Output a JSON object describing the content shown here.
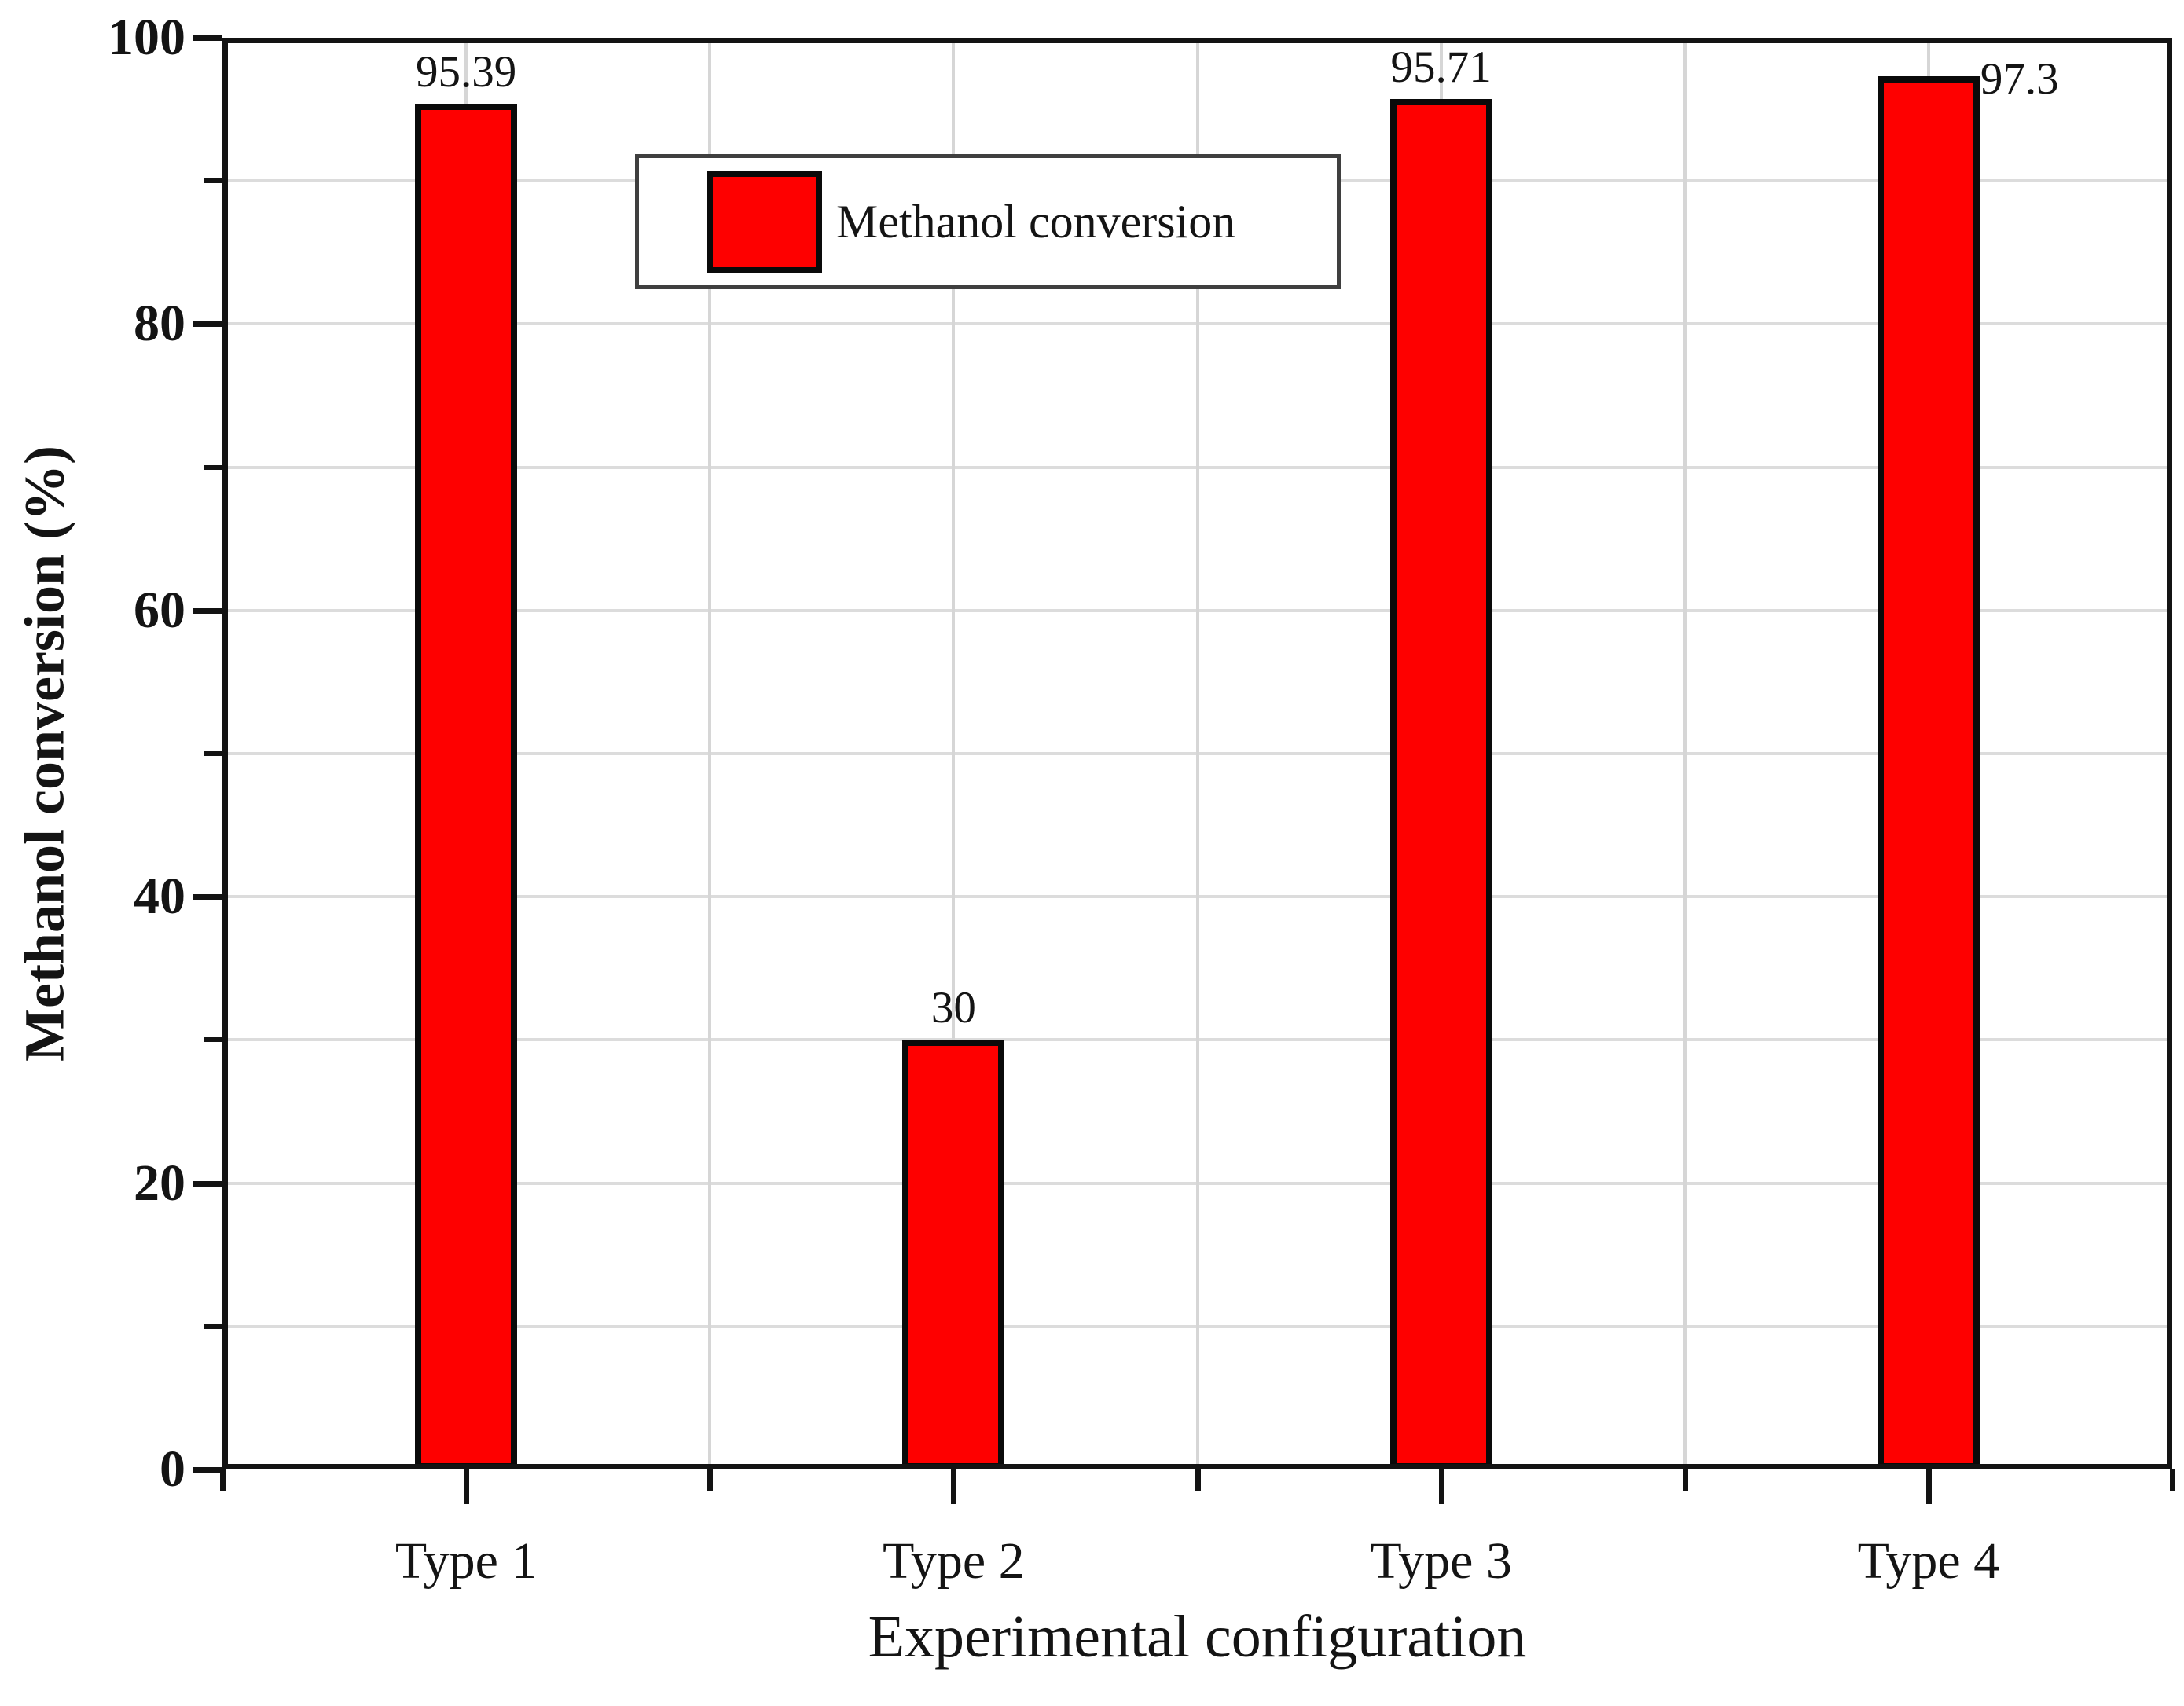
{
  "chart_data": {
    "type": "bar",
    "title": "",
    "categories": [
      "Type 1",
      "Type 2",
      "Type 3",
      "Type 4"
    ],
    "values": [
      95.39,
      30,
      95.71,
      97.3
    ],
    "bar_labels": [
      "95.39",
      "30",
      "95.71",
      "97.3"
    ],
    "bar_label_side": [
      "top",
      "top",
      "top",
      "top-right"
    ],
    "xlabel": "Experimental configuration",
    "ylabel": "Methanol conversion (%)",
    "ylim": [
      0,
      100
    ],
    "y_major_ticks": [
      0,
      20,
      40,
      60,
      80,
      100
    ],
    "y_tick_labels": [
      "0",
      "20",
      "40",
      "60",
      "80",
      "100"
    ],
    "y_minor_ticks": [
      10,
      30,
      50,
      70,
      90
    ],
    "grid": {
      "show": true,
      "horizontal_interval": 10,
      "vertical_lines": "at category centers and category boundaries",
      "color": "#d8d8d8"
    },
    "legend": {
      "label": "Methanol conversion",
      "position": "upper left inside plot",
      "swatch_color": "#fe0000"
    },
    "colors": {
      "bar_fill": "#fe0000",
      "bar_border": "#0a0a0a",
      "axis": "#131313",
      "text": "#141414",
      "grid": "#d8d8d8",
      "legend_border": "#3f3f3f",
      "legend_bg": "#ffffff"
    }
  }
}
